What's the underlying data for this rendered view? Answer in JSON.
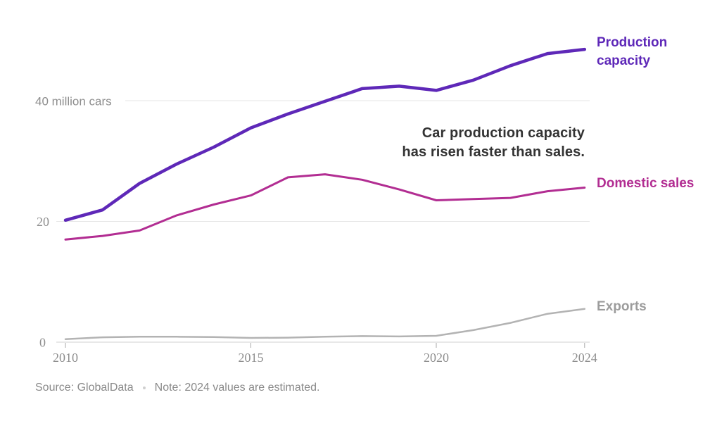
{
  "annotation": {
    "lines": [
      "Car production capacity",
      "has risen faster than sales."
    ]
  },
  "footer": {
    "source": "Source: GlobalData",
    "note": "Note: 2024 values are estimated."
  },
  "colors": {
    "production_capacity": "#5e28b8",
    "domestic_sales": "#b22d92",
    "exports_line": "#b3b3b3",
    "exports_label": "#9c9c9c",
    "annotation_text": "#333333",
    "axis_text": "#8e8e8e",
    "gridline": "#e6e6e6",
    "axis_line": "#d2d2d2",
    "tick": "#aaaaaa",
    "source_text": "#8a8a8a"
  },
  "chart_data": {
    "type": "line",
    "title": "Car production capacity has risen faster than sales.",
    "xlabel": "",
    "ylabel": "million cars",
    "xlim": [
      2010,
      2024
    ],
    "ylim": [
      0,
      50
    ],
    "grid": "horizontal",
    "legend_position": "right-of-lines",
    "x": [
      2010,
      2011,
      2012,
      2013,
      2014,
      2015,
      2016,
      2017,
      2018,
      2019,
      2020,
      2021,
      2022,
      2023,
      2024
    ],
    "x_ticks": [
      2010,
      2015,
      2020,
      2024
    ],
    "y_ticks": [
      {
        "value": 40,
        "label": "40 million cars"
      },
      {
        "value": 20,
        "label": "20"
      },
      {
        "value": 0,
        "label": "0"
      }
    ],
    "series": [
      {
        "name": "Production capacity",
        "color": "#5e28b8",
        "values": [
          20.2,
          21.9,
          26.3,
          29.5,
          32.3,
          35.5,
          37.8,
          39.9,
          42.0,
          42.4,
          41.7,
          43.4,
          45.8,
          47.8,
          48.5
        ]
      },
      {
        "name": "Domestic sales",
        "color": "#b22d92",
        "values": [
          17.0,
          17.6,
          18.5,
          21.0,
          22.8,
          24.3,
          27.3,
          27.8,
          26.9,
          25.3,
          23.5,
          23.7,
          23.9,
          25.0,
          25.6
        ]
      },
      {
        "name": "Exports",
        "color": "#b3b3b3",
        "label_color": "#9c9c9c",
        "values": [
          0.5,
          0.8,
          0.9,
          0.9,
          0.85,
          0.7,
          0.75,
          0.9,
          1.0,
          0.95,
          1.05,
          2.0,
          3.2,
          4.7,
          5.5
        ]
      }
    ]
  }
}
